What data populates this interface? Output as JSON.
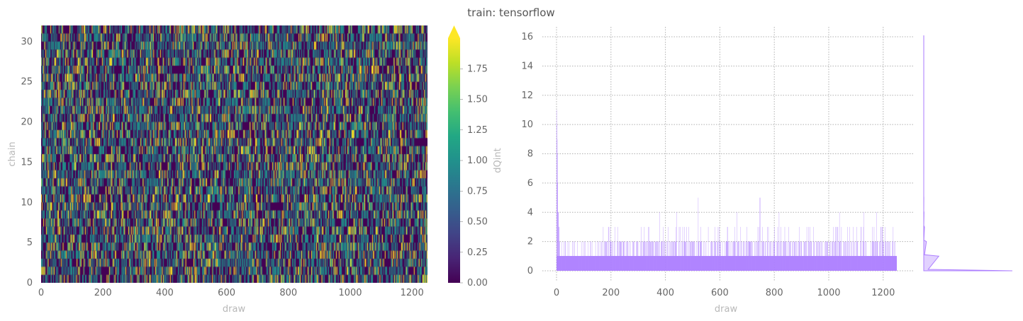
{
  "figure_title": "train: tensorflow",
  "colors": {
    "trace": "#ad7fff",
    "grid": "#b0b0b0"
  },
  "chart_data": [
    {
      "type": "heatmap",
      "xlabel": "draw",
      "ylabel": "chain",
      "x_range": [
        0,
        1250
      ],
      "y_range": [
        0,
        32
      ],
      "x_ticks": [
        "0",
        "200",
        "400",
        "600",
        "800",
        "1000",
        "1200"
      ],
      "y_ticks": [
        "0",
        "5",
        "10",
        "15",
        "20",
        "25",
        "30"
      ],
      "n_chains": 32,
      "n_draws": 1250,
      "value_fractions": {
        "0": 0.74,
        "1": 0.2,
        "2": 0.06
      },
      "colormap": "viridis",
      "colorbar": {
        "label": "dQint",
        "range": [
          0,
          2
        ],
        "extend": "max",
        "ticks": [
          "0.00",
          "0.25",
          "0.50",
          "0.75",
          "1.00",
          "1.25",
          "1.50",
          "1.75"
        ]
      }
    },
    {
      "type": "line",
      "xlabel": "draw",
      "ylabel": "",
      "x_range": [
        0,
        1250
      ],
      "y_range": [
        0,
        16
      ],
      "grid": true,
      "x_ticks": [
        "0",
        "200",
        "400",
        "600",
        "800",
        "1000",
        "1200"
      ],
      "y_ticks": [
        "0",
        "2",
        "4",
        "6",
        "8",
        "10",
        "12",
        "14",
        "16"
      ],
      "series_notes": {
        "initial_spike_max": 11,
        "typical_max_by_draw": [
          [
            0,
            11
          ],
          [
            5,
            3
          ],
          [
            10,
            1
          ],
          [
            150,
            2
          ],
          [
            700,
            4
          ],
          [
            745,
            5
          ],
          [
            1250,
            2
          ]
        ],
        "bulk_level": 1,
        "frequent_level": 2,
        "frequent_range": [
          150,
          1250
        ]
      },
      "marginal_histogram": {
        "orientation": "horizontal",
        "bins": [
          0,
          1,
          2,
          3,
          4,
          5,
          16
        ],
        "density": [
          1.0,
          0.17,
          0.03,
          0.008,
          0.003,
          0.001,
          0.0005
        ]
      }
    }
  ]
}
